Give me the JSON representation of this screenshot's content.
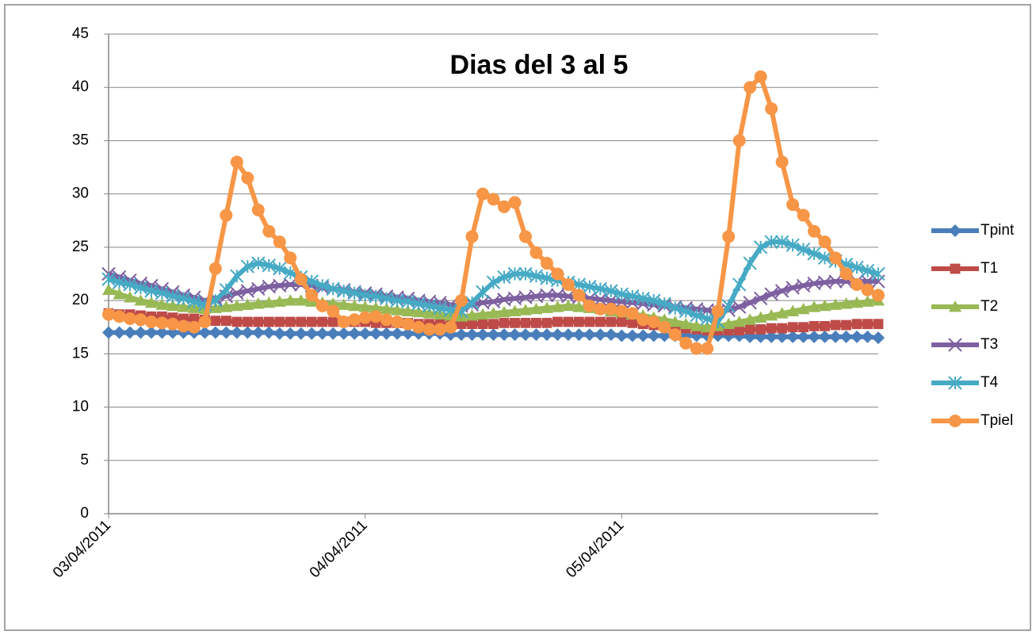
{
  "chart_data": {
    "type": "line",
    "title": "Dias del 3 al 5",
    "categories": [
      "03/04/2011",
      null,
      null,
      null,
      null,
      null,
      null,
      null,
      null,
      null,
      null,
      null,
      null,
      null,
      null,
      null,
      null,
      null,
      null,
      null,
      null,
      null,
      null,
      null,
      "04/04/2011",
      null,
      null,
      null,
      null,
      null,
      null,
      null,
      null,
      null,
      null,
      null,
      null,
      null,
      null,
      null,
      null,
      null,
      null,
      null,
      null,
      null,
      null,
      null,
      "05/04/2011",
      null,
      null,
      null,
      null,
      null,
      null,
      null,
      null,
      null,
      null,
      null,
      null,
      null,
      null,
      null,
      null,
      null,
      null,
      null,
      null,
      null,
      null,
      null,
      null
    ],
    "ylim": [
      0,
      45
    ],
    "yticks": [
      0,
      5,
      10,
      15,
      20,
      25,
      30,
      35,
      40,
      45
    ],
    "grid": true,
    "legend": "right",
    "series": [
      {
        "name": "Tpint",
        "color": "#4a7ebb",
        "marker": "diamond",
        "values": [
          17,
          17,
          17,
          17,
          17,
          17,
          17,
          17,
          17,
          17,
          17,
          17,
          17,
          17,
          17,
          17,
          16.9,
          16.9,
          16.9,
          16.9,
          16.9,
          16.9,
          16.9,
          16.9,
          16.9,
          16.9,
          16.9,
          16.9,
          16.9,
          16.9,
          16.9,
          16.9,
          16.8,
          16.8,
          16.8,
          16.8,
          16.8,
          16.8,
          16.8,
          16.8,
          16.8,
          16.8,
          16.8,
          16.8,
          16.8,
          16.8,
          16.8,
          16.8,
          16.7,
          16.7,
          16.7,
          16.7,
          16.7,
          16.7,
          16.7,
          16.7,
          16.7,
          16.7,
          16.7,
          16.7,
          16.6,
          16.6,
          16.6,
          16.6,
          16.6,
          16.6,
          16.6,
          16.6,
          16.6,
          16.6,
          16.6,
          16.6,
          16.5
        ]
      },
      {
        "name": "T1",
        "color": "#be4b48",
        "marker": "square",
        "values": [
          18.8,
          18.7,
          18.7,
          18.6,
          18.5,
          18.5,
          18.4,
          18.3,
          18.3,
          18.2,
          18.1,
          18.1,
          18,
          18,
          18,
          18,
          18,
          18,
          18,
          18,
          18,
          18,
          18,
          18,
          18,
          17.9,
          17.9,
          17.9,
          17.9,
          17.8,
          17.8,
          17.8,
          17.8,
          17.8,
          17.8,
          17.8,
          17.8,
          17.9,
          17.9,
          17.9,
          17.9,
          17.9,
          18,
          18,
          18,
          18,
          18,
          18,
          18,
          17.9,
          17.8,
          17.7,
          17.6,
          17.5,
          17.4,
          17.3,
          17.2,
          17.2,
          17.2,
          17.2,
          17.3,
          17.3,
          17.4,
          17.4,
          17.5,
          17.5,
          17.6,
          17.6,
          17.7,
          17.7,
          17.8,
          17.8,
          17.8
        ]
      },
      {
        "name": "T2",
        "color": "#98b954",
        "marker": "triangle",
        "values": [
          21,
          20.6,
          20.3,
          20,
          19.8,
          19.6,
          19.5,
          19.4,
          19.3,
          19.2,
          19.3,
          19.4,
          19.5,
          19.6,
          19.7,
          19.8,
          19.9,
          20,
          20,
          19.9,
          19.8,
          19.7,
          19.6,
          19.5,
          19.4,
          19.3,
          19.2,
          19.1,
          19,
          18.9,
          18.8,
          18.7,
          18.6,
          18.5,
          18.6,
          18.7,
          18.8,
          18.9,
          19,
          19.1,
          19.2,
          19.3,
          19.4,
          19.5,
          19.4,
          19.3,
          19.2,
          19,
          18.9,
          18.7,
          18.6,
          18.4,
          18.2,
          18,
          17.8,
          17.6,
          17.5,
          17.6,
          17.8,
          18,
          18.2,
          18.4,
          18.6,
          18.8,
          19,
          19.2,
          19.4,
          19.5,
          19.6,
          19.7,
          19.8,
          19.9,
          20
        ]
      },
      {
        "name": "T3",
        "color": "#7d60a0",
        "marker": "x",
        "values": [
          22.5,
          22.2,
          21.9,
          21.6,
          21.4,
          21.1,
          20.8,
          20.5,
          20.3,
          20,
          20.2,
          20.4,
          20.7,
          20.9,
          21.1,
          21.3,
          21.4,
          21.5,
          21.5,
          21.4,
          21.2,
          21.1,
          21,
          20.8,
          20.7,
          20.6,
          20.4,
          20.3,
          20.2,
          20,
          19.9,
          19.8,
          19.6,
          19.5,
          19.6,
          19.8,
          19.9,
          20.1,
          20.2,
          20.3,
          20.4,
          20.5,
          20.5,
          20.4,
          20.3,
          20.2,
          20.1,
          20,
          19.9,
          19.8,
          19.7,
          19.6,
          19.5,
          19.4,
          19.3,
          19.2,
          19.1,
          19,
          19.1,
          19.4,
          19.8,
          20.2,
          20.6,
          20.9,
          21.2,
          21.4,
          21.6,
          21.7,
          21.8,
          21.8,
          21.8,
          21.8,
          21.8
        ]
      },
      {
        "name": "T4",
        "color": "#46aac5",
        "marker": "star",
        "values": [
          22,
          21.7,
          21.5,
          21.2,
          20.9,
          20.7,
          20.4,
          20.2,
          19.9,
          19.6,
          20,
          21,
          22.3,
          23.2,
          23.5,
          23.3,
          23,
          22.6,
          22.2,
          21.8,
          21.4,
          21.1,
          20.9,
          20.7,
          20.5,
          20.4,
          20.2,
          20,
          19.9,
          19.7,
          19.5,
          19.3,
          19.1,
          19,
          19.8,
          20.8,
          21.7,
          22.2,
          22.5,
          22.5,
          22.3,
          22.1,
          21.9,
          21.7,
          21.5,
          21.3,
          21.1,
          20.9,
          20.6,
          20.4,
          20.2,
          20,
          19.7,
          19.3,
          19,
          18.6,
          18.3,
          18,
          19.5,
          21.5,
          23.5,
          25,
          25.5,
          25.5,
          25.2,
          24.8,
          24.4,
          24,
          23.7,
          23.4,
          23.1,
          22.8,
          22.5
        ]
      },
      {
        "name": "Tpiel",
        "color": "#f79646",
        "marker": "circle",
        "values": [
          18.7,
          18.5,
          18.3,
          18.2,
          18,
          17.9,
          17.8,
          17.6,
          17.5,
          18,
          23,
          28,
          33,
          31.5,
          28.5,
          26.5,
          25.5,
          24,
          22,
          20.5,
          19.5,
          19,
          18,
          18.2,
          18.4,
          18.5,
          18.2,
          18,
          17.8,
          17.5,
          17.3,
          17.3,
          17.5,
          20,
          26,
          30,
          29.5,
          28.8,
          29.2,
          26,
          24.5,
          23.5,
          22.5,
          21.5,
          20.5,
          19.5,
          19.2,
          19.2,
          19,
          18.8,
          18.2,
          18,
          17.5,
          16.8,
          16,
          15.5,
          15.5,
          19,
          26,
          35,
          40,
          41,
          38,
          33,
          29,
          28,
          26.5,
          25.5,
          24,
          22.5,
          21.5,
          21,
          20.5
        ]
      }
    ]
  }
}
